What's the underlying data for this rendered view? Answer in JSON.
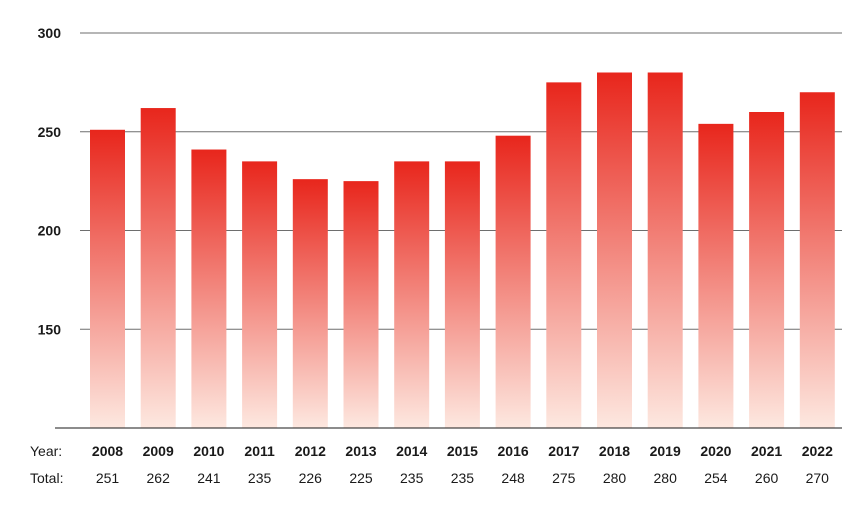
{
  "chart_data": {
    "type": "bar",
    "categories": [
      "2008",
      "2009",
      "2010",
      "2011",
      "2012",
      "2013",
      "2014",
      "2015",
      "2016",
      "2017",
      "2018",
      "2019",
      "2020",
      "2021",
      "2022"
    ],
    "values": [
      251,
      262,
      241,
      235,
      226,
      225,
      235,
      235,
      248,
      275,
      280,
      280,
      254,
      260,
      270
    ],
    "totals_text": [
      "251",
      "262",
      "241",
      "235",
      "226",
      "225",
      "235",
      "235",
      "248",
      "275",
      "280",
      "280",
      "254",
      "260",
      "270"
    ],
    "yticks": [
      150,
      200,
      250,
      300
    ],
    "ylim": [
      100,
      300
    ],
    "grid": true,
    "row_labels": {
      "year": "Year:",
      "total": "Total:"
    },
    "colors": {
      "bar_top": "#e8261c",
      "bar_bottom": "#fde8e0",
      "grid": "#6e6e6e",
      "axis": "#1a1a1a"
    }
  }
}
